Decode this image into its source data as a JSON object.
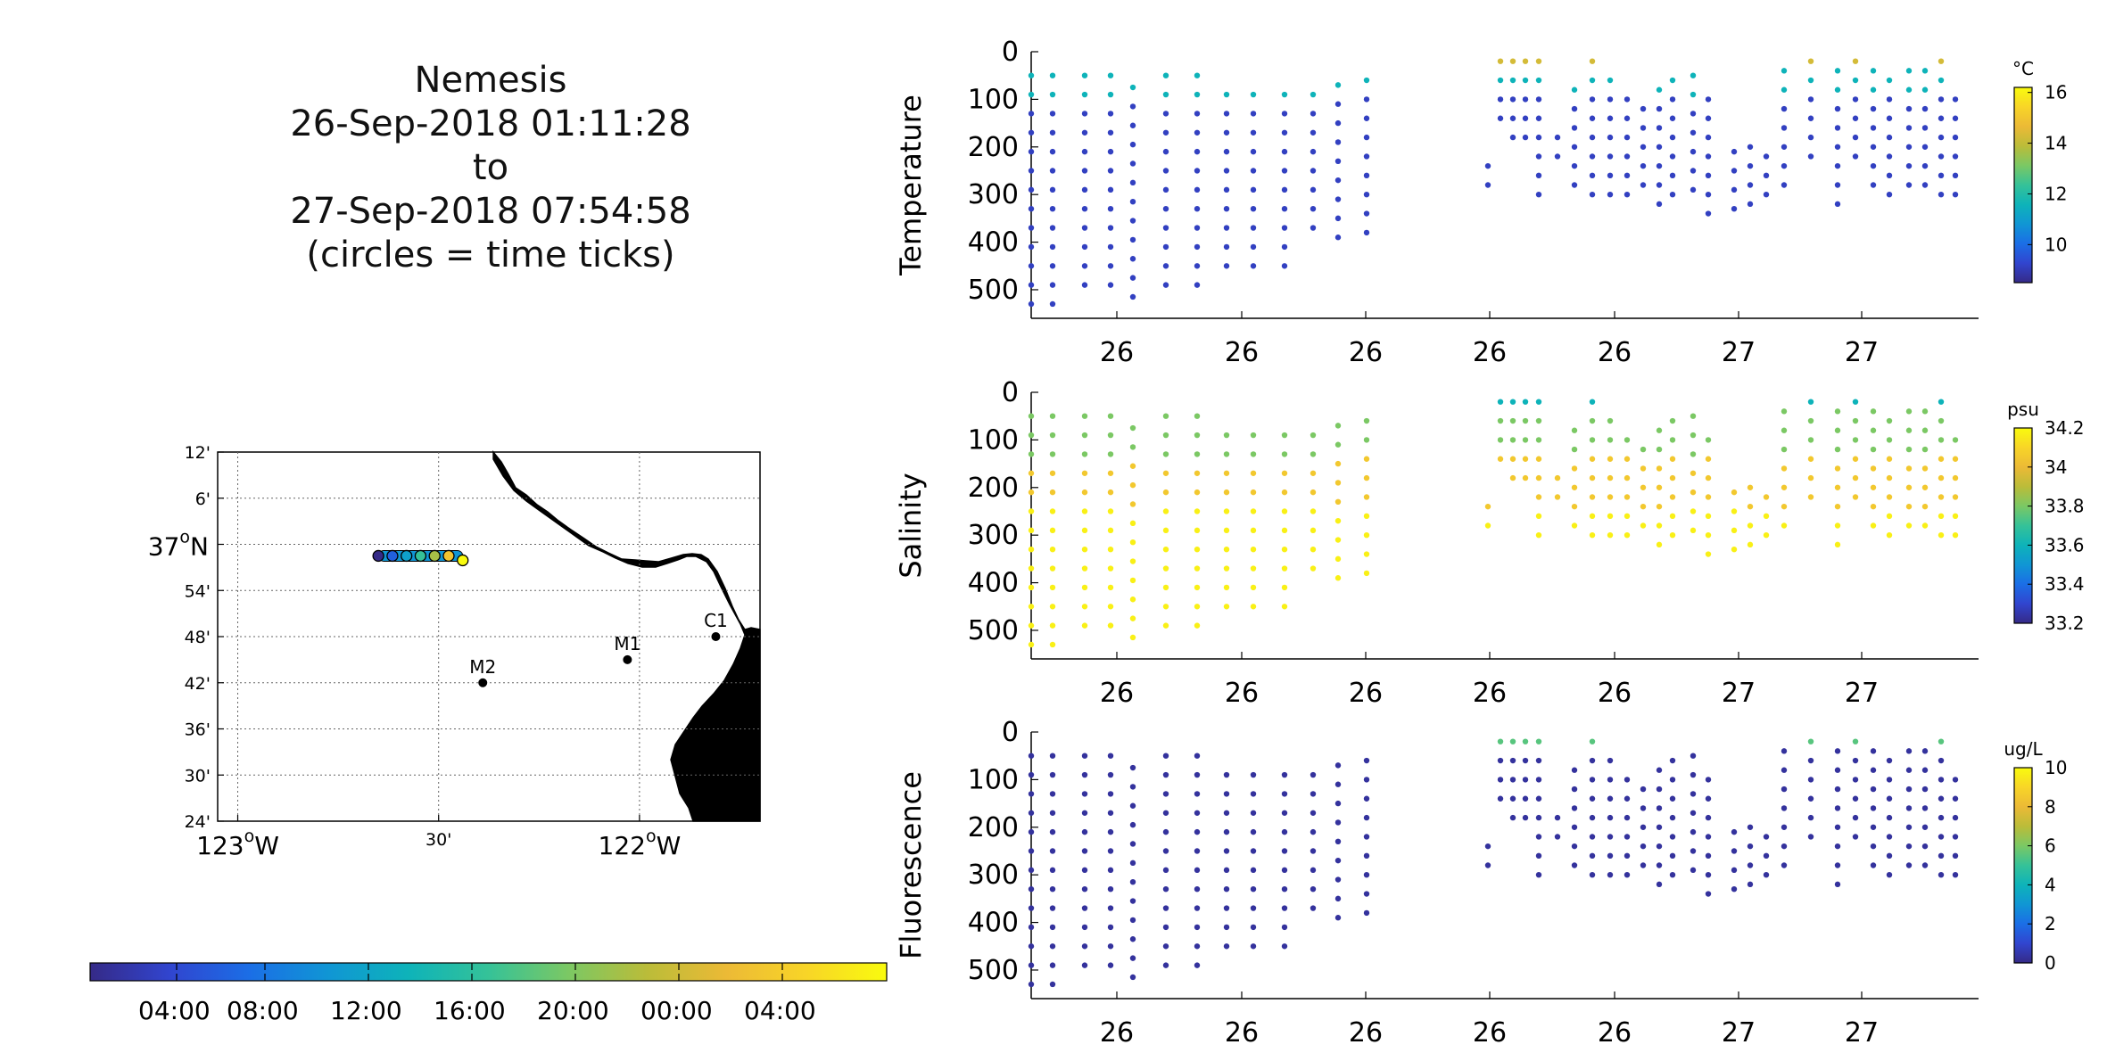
{
  "title": {
    "lines": [
      "Nemesis",
      "26-Sep-2018 01:11:28",
      "to",
      "27-Sep-2018 07:54:58",
      "(circles = time ticks)"
    ]
  },
  "map": {
    "lat_ticks": [
      "12'",
      "6'",
      "37",
      "54'",
      "48'",
      "42'",
      "36'",
      "30'",
      "24'"
    ],
    "lat_37_suffix": "N",
    "lon_ticks": [
      "123",
      "30'",
      "122"
    ],
    "lon_suffix": "W",
    "degree_mark": "o",
    "stations": [
      {
        "name": "C1",
        "lon": -121.81,
        "lat": 36.8
      },
      {
        "name": "M1",
        "lon": -122.03,
        "lat": 36.75
      },
      {
        "name": "M2",
        "lon": -122.39,
        "lat": 36.7
      }
    ],
    "track": {
      "lon_start": -122.65,
      "lon_end": -122.44,
      "lat": 36.975
    },
    "land_color": "#e6e6e6"
  },
  "time_colorbar": {
    "labels": [
      "04:00",
      "08:00",
      "12:00",
      "16:00",
      "20:00",
      "00:00",
      "04:00"
    ]
  },
  "chart_data": [
    {
      "type": "scatter",
      "ylabel": "Temperature",
      "units": "°C",
      "x_tick_labels": [
        "26",
        "26",
        "26",
        "26",
        "26",
        "27",
        "27"
      ],
      "y_ticks": [
        0,
        100,
        200,
        300,
        400,
        500
      ],
      "ylim": [
        0,
        560
      ],
      "y_reversed": true,
      "colorbar_ticks": [
        10,
        12,
        14,
        16
      ],
      "clim": [
        8.5,
        16.2
      ],
      "colormap": "parula",
      "grid": false
    },
    {
      "type": "scatter",
      "ylabel": "Salinity",
      "units": "psu",
      "x_tick_labels": [
        "26",
        "26",
        "26",
        "26",
        "26",
        "27",
        "27"
      ],
      "y_ticks": [
        0,
        100,
        200,
        300,
        400,
        500
      ],
      "ylim": [
        0,
        560
      ],
      "y_reversed": true,
      "colorbar_ticks": [
        33.2,
        33.4,
        33.6,
        33.8,
        34,
        34.2
      ],
      "clim": [
        33.2,
        34.2
      ],
      "colormap": "parula",
      "grid": false
    },
    {
      "type": "scatter",
      "ylabel": "Fluorescence",
      "units": "ug/L",
      "x_tick_labels": [
        "26",
        "26",
        "26",
        "26",
        "26",
        "27",
        "27"
      ],
      "y_ticks": [
        0,
        100,
        200,
        300,
        400,
        500
      ],
      "ylim": [
        0,
        560
      ],
      "y_reversed": true,
      "colorbar_ticks": [
        0,
        2,
        4,
        6,
        8,
        10
      ],
      "clim": [
        0,
        10
      ],
      "colormap": "parula",
      "grid": false
    }
  ]
}
